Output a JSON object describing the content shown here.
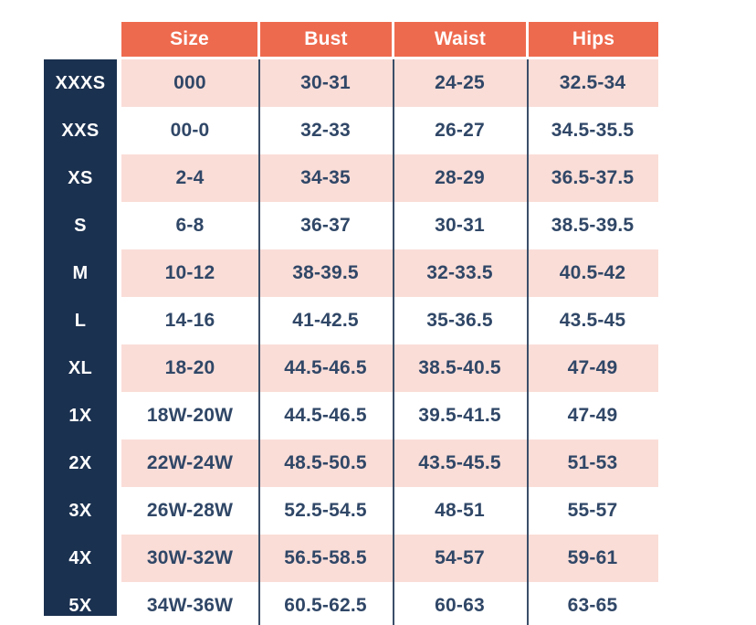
{
  "table": {
    "columns": [
      "Size",
      "Bust",
      "Waist",
      "Hips"
    ],
    "rows": [
      {
        "label": "XXXS",
        "size": "000",
        "bust": "30-31",
        "waist": "24-25",
        "hips": "32.5-34"
      },
      {
        "label": "XXS",
        "size": "00-0",
        "bust": "32-33",
        "waist": "26-27",
        "hips": "34.5-35.5"
      },
      {
        "label": "XS",
        "size": "2-4",
        "bust": "34-35",
        "waist": "28-29",
        "hips": "36.5-37.5"
      },
      {
        "label": "S",
        "size": "6-8",
        "bust": "36-37",
        "waist": "30-31",
        "hips": "38.5-39.5"
      },
      {
        "label": "M",
        "size": "10-12",
        "bust": "38-39.5",
        "waist": "32-33.5",
        "hips": "40.5-42"
      },
      {
        "label": "L",
        "size": "14-16",
        "bust": "41-42.5",
        "waist": "35-36.5",
        "hips": "43.5-45"
      },
      {
        "label": "XL",
        "size": "18-20",
        "bust": "44.5-46.5",
        "waist": "38.5-40.5",
        "hips": "47-49"
      },
      {
        "label": "1X",
        "size": "18W-20W",
        "bust": "44.5-46.5",
        "waist": "39.5-41.5",
        "hips": "47-49"
      },
      {
        "label": "2X",
        "size": "22W-24W",
        "bust": "48.5-50.5",
        "waist": "43.5-45.5",
        "hips": "51-53"
      },
      {
        "label": "3X",
        "size": "26W-28W",
        "bust": "52.5-54.5",
        "waist": "48-51",
        "hips": "55-57"
      },
      {
        "label": "4X",
        "size": "30W-32W",
        "bust": "56.5-58.5",
        "waist": "54-57",
        "hips": "59-61"
      },
      {
        "label": "5X",
        "size": "34W-36W",
        "bust": "60.5-62.5",
        "waist": "60-63",
        "hips": "63-65"
      }
    ],
    "colors": {
      "header_bg": "#EE6A4E",
      "header_text": "#FFFFFF",
      "label_bg": "#1B3150",
      "label_text": "#FFFFFF",
      "row_pink": "#FADDD7",
      "row_white": "#FFFFFF",
      "cell_text": "#304767",
      "divider": "#3A4E68"
    }
  }
}
